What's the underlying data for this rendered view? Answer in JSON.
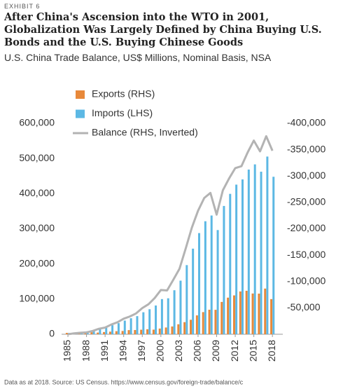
{
  "chart_data": {
    "type": "bar-line",
    "label": "EXHIBIT 6",
    "title": "After China's Ascension into the WTO in 2001, Globalization Was Largely Defined by China Buying U.S. Bonds and the U.S. Buying Chinese Goods",
    "subtitle": "U.S. China Trade Balance, US$ Millions, Nominal Basis, NSA",
    "note": "Data as at 2018. Source: US Census. https://www.census.gov/foreign-trade/balance/c",
    "x": [
      1985,
      1986,
      1987,
      1988,
      1989,
      1990,
      1991,
      1992,
      1993,
      1994,
      1995,
      1996,
      1997,
      1998,
      1999,
      2000,
      2001,
      2002,
      2003,
      2004,
      2005,
      2006,
      2007,
      2008,
      2009,
      2010,
      2011,
      2012,
      2013,
      2014,
      2015,
      2016,
      2017,
      2018
    ],
    "xlim": [
      1984.5,
      2018.5
    ],
    "xticks": [
      1985,
      1988,
      1991,
      1994,
      1997,
      2000,
      2003,
      2006,
      2009,
      2012,
      2015,
      2018
    ],
    "ylim": [
      0,
      600000
    ],
    "yticks": [
      {
        "value": 0,
        "label": "0"
      },
      {
        "value": 100000,
        "label": "100,000"
      },
      {
        "value": 200000,
        "label": "200,000"
      },
      {
        "value": 300000,
        "label": "300,000"
      },
      {
        "value": 400000,
        "label": "400,000"
      },
      {
        "value": 500000,
        "label": "500,000"
      },
      {
        "value": 600000,
        "label": "600,000"
      }
    ],
    "y2lim": [
      0,
      -400000
    ],
    "y2ticks": [
      {
        "value": -50000,
        "label": "-50,000"
      },
      {
        "value": -100000,
        "label": "-100,000"
      },
      {
        "value": -150000,
        "label": "-150,000"
      },
      {
        "value": -200000,
        "label": "-200,000"
      },
      {
        "value": -250000,
        "label": "-250,000"
      },
      {
        "value": -300000,
        "label": "-300,000"
      },
      {
        "value": -350000,
        "label": "-350,000"
      },
      {
        "value": -400000,
        "label": "-400,000"
      }
    ],
    "series": [
      {
        "name": "Exports (RHS)",
        "color": "#e8893a",
        "kind": "bar",
        "values": [
          3856,
          3106,
          3497,
          5022,
          5755,
          4806,
          6278,
          7418,
          8763,
          9282,
          11754,
          11993,
          12862,
          14241,
          13111,
          16185,
          19182,
          22128,
          28368,
          34428,
          41192,
          53673,
          62937,
          69733,
          69497,
          91911,
          104122,
          110517,
          121746,
          123657,
          115873,
          115546,
          129894,
          100000
        ]
      },
      {
        "name": "Imports (LHS)",
        "color": "#5cb8e4",
        "kind": "bar",
        "values": [
          3862,
          4771,
          6294,
          8511,
          11990,
          15237,
          18969,
          25728,
          31540,
          38787,
          45543,
          51513,
          62558,
          71169,
          81788,
          100018,
          102278,
          125193,
          152436,
          196682,
          243470,
          287774,
          321443,
          337773,
          296374,
          364953,
          399371,
          425619,
          440430,
          468475,
          483202,
          462420,
          505470,
          448000
        ]
      },
      {
        "name": "Balance (RHS, Inverted)",
        "color": "#b3b3b3",
        "kind": "line",
        "axis": "y2",
        "values": [
          -6,
          -1665,
          -2797,
          -3489,
          -6235,
          -10431,
          -12691,
          -18310,
          -22777,
          -29505,
          -33789,
          -39520,
          -49696,
          -56928,
          -68677,
          -83833,
          -83096,
          -103065,
          -124068,
          -162254,
          -202278,
          -234101,
          -258506,
          -268040,
          -226877,
          -273042,
          -295249,
          -315102,
          -318684,
          -344818,
          -367329,
          -346874,
          -375576,
          -348000
        ]
      }
    ]
  }
}
